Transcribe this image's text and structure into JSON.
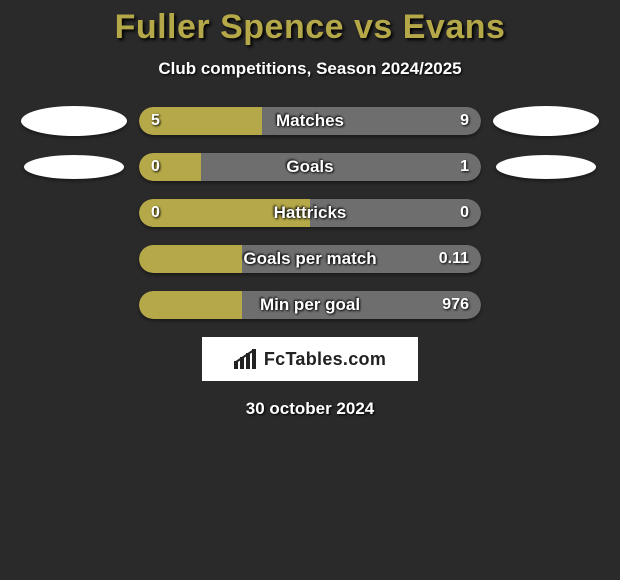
{
  "title": "Fuller Spence vs Evans",
  "subtitle": "Club competitions, Season 2024/2025",
  "date": "30 october 2024",
  "logo_text": "FcTables.com",
  "colors": {
    "background": "#2a2a2a",
    "accent": "#b4a848",
    "neutral": "#6e6e6e",
    "text": "#ffffff",
    "title_color": "#b4a848"
  },
  "stats": [
    {
      "label": "Matches",
      "left_value": "5",
      "right_value": "9",
      "left_pct": 36,
      "right_pct": 64,
      "left_color": "#b4a848",
      "right_color": "#6e6e6e",
      "show_left_badge": true,
      "show_right_badge": true,
      "badge_style": "wide"
    },
    {
      "label": "Goals",
      "left_value": "0",
      "right_value": "1",
      "left_pct": 18,
      "right_pct": 82,
      "left_color": "#b4a848",
      "right_color": "#6e6e6e",
      "show_left_badge": true,
      "show_right_badge": true,
      "badge_style": "narrow"
    },
    {
      "label": "Hattricks",
      "left_value": "0",
      "right_value": "0",
      "left_pct": 50,
      "right_pct": 50,
      "left_color": "#b4a848",
      "right_color": "#6e6e6e",
      "show_left_badge": false,
      "show_right_badge": false
    },
    {
      "label": "Goals per match",
      "left_value": "",
      "right_value": "0.11",
      "left_pct": 30,
      "right_pct": 70,
      "left_color": "#b4a848",
      "right_color": "#6e6e6e",
      "show_left_badge": false,
      "show_right_badge": false
    },
    {
      "label": "Min per goal",
      "left_value": "",
      "right_value": "976",
      "left_pct": 30,
      "right_pct": 70,
      "left_color": "#b4a848",
      "right_color": "#6e6e6e",
      "show_left_badge": false,
      "show_right_badge": false
    }
  ]
}
